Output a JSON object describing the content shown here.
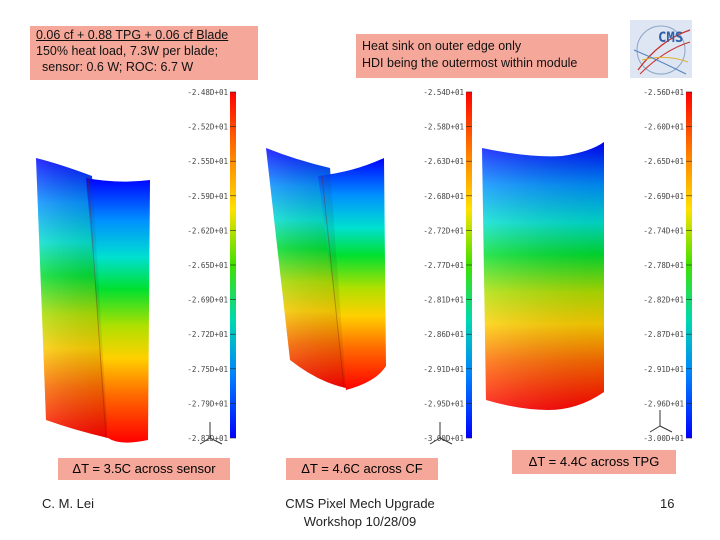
{
  "notes": {
    "left": [
      "0.06 cf + 0.88 TPG + 0.06 cf Blade",
      "150% heat load, 7.3W per blade;",
      "sensor: 0.6 W; ROC:  6.7 W"
    ],
    "middle": [
      "Heat sink on outer edge only",
      "HDI being the outermost within module"
    ]
  },
  "delta_labels": [
    "ΔT = 3.5C across sensor",
    "ΔT = 4.6C across CF",
    "ΔT = 4.4C across TPG"
  ],
  "footer": {
    "author": "C. M. Lei",
    "event": [
      "CMS Pixel Mech Upgrade",
      "Workshop 10/28/09"
    ],
    "page": "16"
  },
  "logo": {
    "text": "CMS"
  },
  "scales": [
    [
      "-2.48D+01",
      "-2.52D+01",
      "-2.55D+01",
      "-2.59D+01",
      "-2.62D+01",
      "-2.65D+01",
      "-2.69D+01",
      "-2.72D+01",
      "-2.75D+01",
      "-2.79D+01",
      "-2.82D+01"
    ],
    [
      "-2.54D+01",
      "-2.58D+01",
      "-2.63D+01",
      "-2.68D+01",
      "-2.72D+01",
      "-2.77D+01",
      "-2.81D+01",
      "-2.86D+01",
      "-2.91D+01",
      "-2.95D+01",
      "-3.00D+01"
    ],
    [
      "-2.56D+01",
      "-2.60D+01",
      "-2.65D+01",
      "-2.69D+01",
      "-2.74D+01",
      "-2.78D+01",
      "-2.82D+01",
      "-2.87D+01",
      "-2.91D+01",
      "-2.96D+01",
      "-3.00D+01"
    ]
  ],
  "colors": {
    "callout": "#f5a89a",
    "hot": "#ff0000",
    "cold": "#0000ff"
  }
}
